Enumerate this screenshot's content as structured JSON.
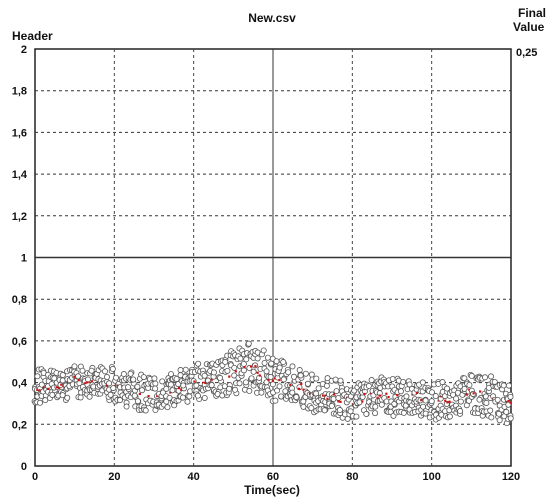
{
  "chart_data": {
    "type": "scatter",
    "title": "New.csv",
    "ylabel": "Header",
    "xlabel": "Time(sec)",
    "side_label": [
      "Final",
      "Value"
    ],
    "final_value": "0,25",
    "xlim": [
      0,
      120
    ],
    "ylim": [
      0,
      2
    ],
    "x_ticks": [
      "0",
      "20",
      "40",
      "60",
      "80",
      "100",
      "120"
    ],
    "y_ticks": [
      "0",
      "0,2",
      "0,4",
      "0,6",
      "0,8",
      "1",
      "1,2",
      "1,4",
      "1,6",
      "1,8",
      "2"
    ],
    "grid": true,
    "reference_line_y": 1,
    "cursor_line_x": 60,
    "marker_color": "#555555",
    "marker_fill": "#ffffff",
    "trend_color": "#cc1111",
    "series": [
      {
        "x": [
          0,
          5,
          10,
          15,
          20,
          25,
          30,
          35,
          40,
          45,
          50,
          55,
          60,
          65,
          70,
          75,
          80,
          85,
          90,
          95,
          100,
          105,
          110,
          115,
          120
        ],
        "y": [
          0.36,
          0.39,
          0.41,
          0.42,
          0.4,
          0.36,
          0.34,
          0.37,
          0.4,
          0.42,
          0.44,
          0.47,
          0.41,
          0.4,
          0.36,
          0.33,
          0.31,
          0.35,
          0.33,
          0.34,
          0.31,
          0.33,
          0.35,
          0.33,
          0.3
        ],
        "y_low": [
          0.29,
          0.31,
          0.32,
          0.33,
          0.31,
          0.27,
          0.26,
          0.29,
          0.31,
          0.33,
          0.34,
          0.36,
          0.31,
          0.31,
          0.26,
          0.23,
          0.22,
          0.25,
          0.24,
          0.25,
          0.22,
          0.23,
          0.25,
          0.23,
          0.18
        ],
        "y_high": [
          0.47,
          0.46,
          0.48,
          0.49,
          0.48,
          0.45,
          0.42,
          0.45,
          0.49,
          0.51,
          0.56,
          0.6,
          0.53,
          0.48,
          0.44,
          0.42,
          0.4,
          0.43,
          0.42,
          0.42,
          0.4,
          0.41,
          0.44,
          0.43,
          0.39
        ]
      }
    ]
  }
}
